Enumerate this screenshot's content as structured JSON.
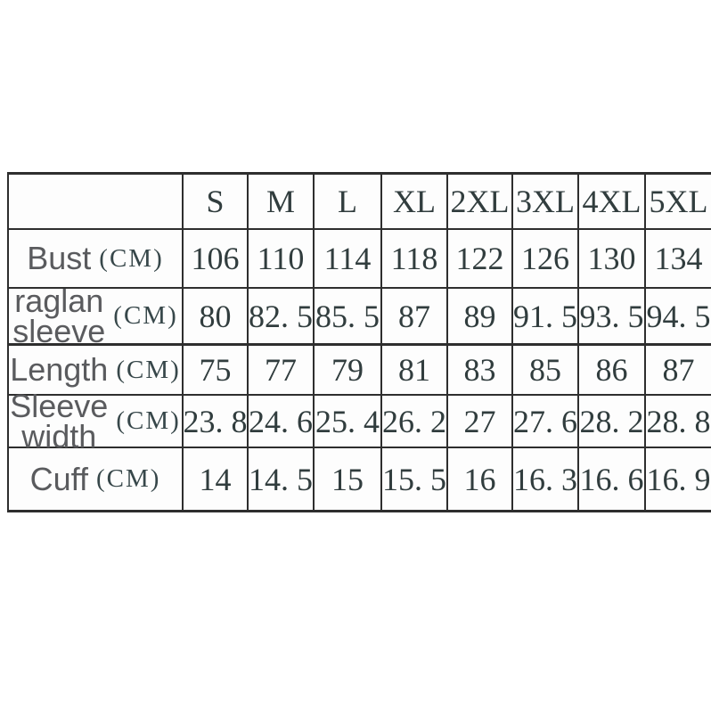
{
  "table": {
    "unit": "(CM)",
    "columns": [
      "S",
      "M",
      "L",
      "XL",
      "2XL",
      "3XL",
      "4XL",
      "5XL"
    ],
    "rows": [
      {
        "name": "bust",
        "label_lines": [
          "Bust"
        ],
        "values": [
          "106",
          "110",
          "114",
          "118",
          "122",
          "126",
          "130",
          "134"
        ]
      },
      {
        "name": "raglan-sleeve",
        "label_lines": [
          "raglan",
          "sleeve"
        ],
        "values": [
          "80",
          "82. 5",
          "85. 5",
          "87",
          "89",
          "91. 5",
          "93. 5",
          "94. 5"
        ]
      },
      {
        "name": "length",
        "label_lines": [
          "Length"
        ],
        "values": [
          "75",
          "77",
          "79",
          "81",
          "83",
          "85",
          "86",
          "87"
        ]
      },
      {
        "name": "sleeve-width",
        "label_lines": [
          "Sleeve",
          "width"
        ],
        "values": [
          "23. 8",
          "24. 6",
          "25. 4",
          "26. 2",
          "27",
          "27. 6",
          "28. 2",
          "28. 8"
        ]
      },
      {
        "name": "cuff",
        "label_lines": [
          "Cuff"
        ],
        "values": [
          "14",
          "14. 5",
          "15",
          "15. 5",
          "16",
          "16. 3",
          "16. 6",
          "16. 9"
        ]
      }
    ]
  },
  "chart_data": {
    "type": "table",
    "columns": [
      "",
      "S",
      "M",
      "L",
      "XL",
      "2XL",
      "3XL",
      "4XL",
      "5XL"
    ],
    "rows": [
      [
        "Bust (CM)",
        106,
        110,
        114,
        118,
        122,
        126,
        130,
        134
      ],
      [
        "raglan sleeve (CM)",
        80,
        82.5,
        85.5,
        87,
        89,
        91.5,
        93.5,
        94.5
      ],
      [
        "Length (CM)",
        75,
        77,
        79,
        81,
        83,
        85,
        86,
        87
      ],
      [
        "Sleeve width (CM)",
        23.8,
        24.6,
        25.4,
        26.2,
        27,
        27.6,
        28.2,
        28.8
      ],
      [
        "Cuff (CM)",
        14,
        14.5,
        15,
        15.5,
        16,
        16.3,
        16.6,
        16.9
      ]
    ]
  },
  "colors": {
    "border": "#2e2e2e",
    "label_text": "#5a5b5e",
    "value_text": "#313d3e",
    "background": "#ffffff"
  }
}
